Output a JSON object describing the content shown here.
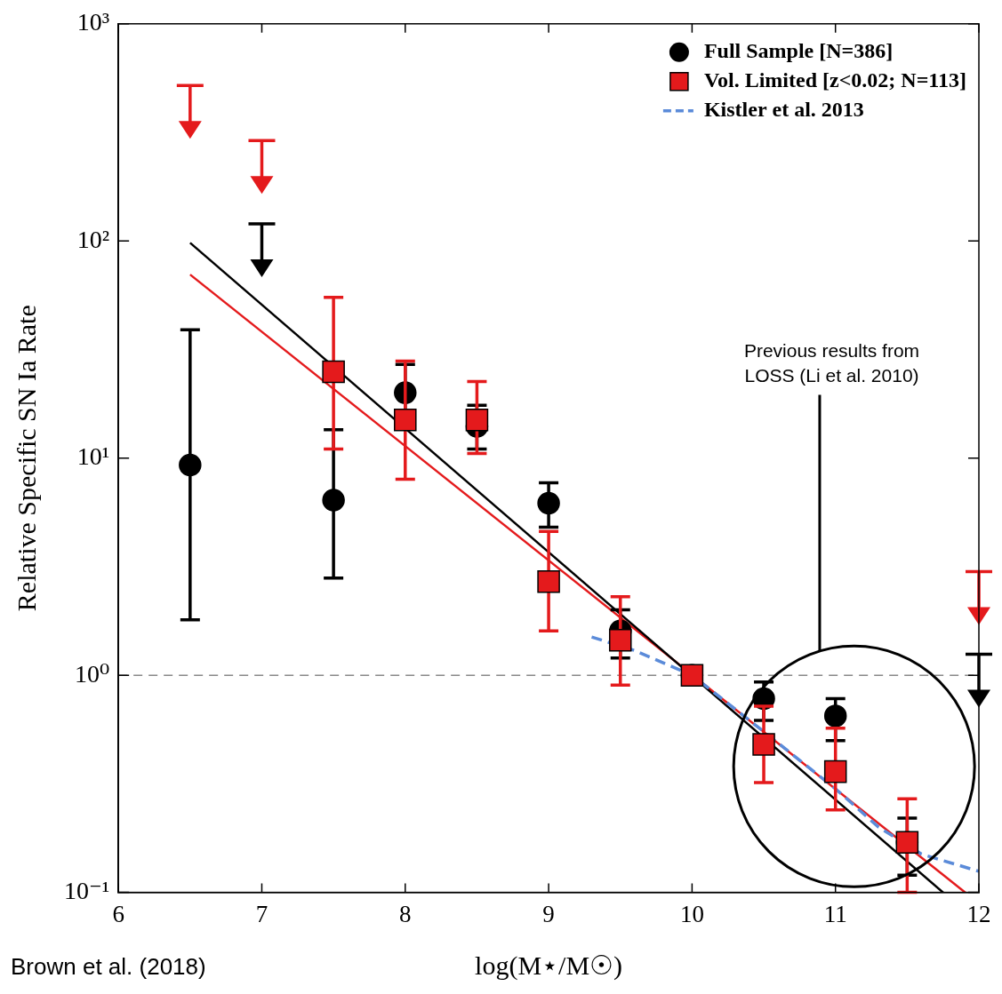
{
  "chart_data": {
    "type": "scatter",
    "x_label": "log(M⋆/M☉)",
    "y_label": "Relative Specific SN Ia Rate",
    "log": "y",
    "grid": false,
    "legend": "upper right",
    "xlim": [
      6,
      12
    ],
    "xticks": [
      6,
      7,
      8,
      9,
      10,
      11,
      12
    ],
    "ylim": [
      0.1,
      1000
    ],
    "yticks": [
      {
        "value": 0.1,
        "label": "10⁻¹"
      },
      {
        "value": 1,
        "label": "10⁰"
      },
      {
        "value": 10,
        "label": "10¹"
      },
      {
        "value": 100,
        "label": "10²"
      },
      {
        "value": 1000,
        "label": "10³"
      }
    ],
    "hline": 1,
    "series": [
      {
        "name": "Full Sample [N=386]",
        "color": "#000000",
        "marker": "circle",
        "x": [
          6.5,
          7.5,
          8,
          8.5,
          9,
          9.5,
          10,
          10.5,
          11,
          11.5
        ],
        "values": [
          9.3,
          6.4,
          20,
          14,
          6.2,
          1.6,
          1.0,
          0.78,
          0.65,
          0.17
        ],
        "error_low": [
          1.8,
          2.8,
          15,
          11,
          4.8,
          1.2,
          1.0,
          0.62,
          0.5,
          0.12
        ],
        "error_high": [
          39,
          13.5,
          27,
          17.5,
          7.7,
          2.0,
          1.0,
          0.93,
          0.78,
          0.22
        ],
        "upper_limits": {
          "x": [
            7,
            12
          ],
          "values": [
            120,
            1.25
          ]
        },
        "fit": {
          "x": [
            6.5,
            12
          ],
          "values": [
            98,
            0.072
          ]
        }
      },
      {
        "name": "Vol. Limited [z<0.02; N=113]",
        "color": "#e41a1c",
        "marker": "square",
        "x": [
          7.5,
          8,
          8.5,
          9,
          9.5,
          10,
          10.5,
          11,
          11.5
        ],
        "values": [
          25,
          15,
          15,
          2.7,
          1.45,
          1.0,
          0.48,
          0.36,
          0.17
        ],
        "error_low": [
          11,
          8,
          10.5,
          1.6,
          0.9,
          1.0,
          0.32,
          0.24,
          0.1
        ],
        "error_high": [
          55,
          28,
          22.5,
          4.6,
          2.3,
          1.0,
          0.72,
          0.57,
          0.27
        ],
        "upper_limits": {
          "x": [
            6.5,
            7,
            12
          ],
          "values": [
            520,
            290,
            3.0
          ]
        },
        "fit": {
          "x": [
            6.5,
            12
          ],
          "values": [
            70,
            0.089
          ]
        }
      },
      {
        "name": "Kistler et al. 2013",
        "type": "line",
        "color": "#5b8bd9",
        "line_style": "dashed",
        "marker": "none",
        "x": [
          9.3,
          9.6,
          10,
          10.5,
          11,
          11.3,
          11.6,
          12
        ],
        "values": [
          1.5,
          1.3,
          1.0,
          0.55,
          0.3,
          0.2,
          0.15,
          0.125
        ]
      }
    ],
    "annotations": [
      {
        "text": "Previous results from\nLOSS (Li et al. 2010)"
      }
    ],
    "caption": "Brown et al. (2018)"
  }
}
